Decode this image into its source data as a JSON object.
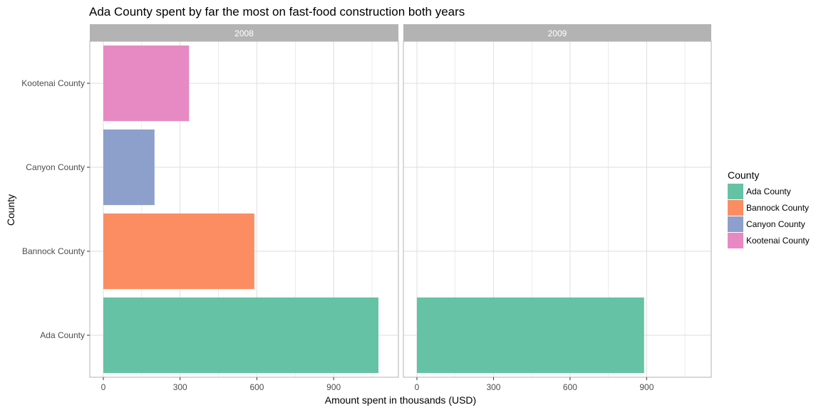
{
  "chart_data": {
    "type": "bar",
    "orientation": "horizontal",
    "title": "Ada County spent by far the most on fast-food construction both years",
    "xlabel": "Amount spent in thousands (USD)",
    "ylabel": "County",
    "xlim": [
      0,
      1100
    ],
    "x_ticks": [
      0,
      300,
      600,
      900
    ],
    "categories": [
      "Ada County",
      "Bannock County",
      "Canyon County",
      "Kootenai County"
    ],
    "facets": [
      {
        "label": "2008",
        "values": {
          "Ada County": 1075,
          "Bannock County": 590,
          "Canyon County": 200,
          "Kootenai County": 335
        }
      },
      {
        "label": "2009",
        "values": {
          "Ada County": 890
        }
      }
    ],
    "legend": {
      "title": "County",
      "position": "right",
      "entries": [
        {
          "label": "Ada County",
          "color": "#66c2a5"
        },
        {
          "label": "Bannock County",
          "color": "#fc8d62"
        },
        {
          "label": "Canyon County",
          "color": "#8da0cb"
        },
        {
          "label": "Kootenai County",
          "color": "#e78ac3"
        }
      ]
    },
    "grid": true,
    "colors": {
      "strip": "#b3b3b3",
      "grid": "#dedede",
      "panel_border": "#b3b3b3"
    }
  }
}
